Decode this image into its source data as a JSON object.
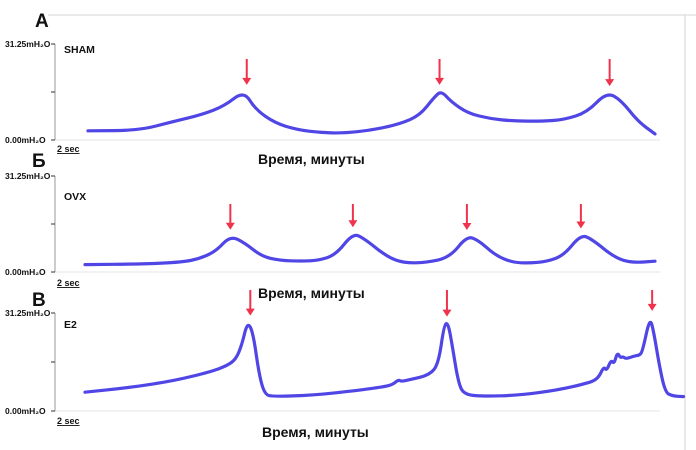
{
  "colors": {
    "trace": "#4f46e5",
    "arrow": "#f0334d"
  },
  "chart_data": [
    {
      "type": "line",
      "panel_letter": "А",
      "group_label": "SHAM",
      "ylim_labels": [
        "0.00mH₂O",
        "31.25mH₂O"
      ],
      "ylim": [
        0,
        31.25
      ],
      "xlim": [
        0,
        100
      ],
      "scale_bar": "2 sec",
      "xlabel": "Время, минуты",
      "points": [
        [
          0,
          3.0
        ],
        [
          9,
          3.1
        ],
        [
          15,
          6.0
        ],
        [
          20,
          8.2
        ],
        [
          24,
          11.0
        ],
        [
          27.5,
          16.0
        ],
        [
          29.5,
          10.0
        ],
        [
          33,
          5.5
        ],
        [
          37,
          3.3
        ],
        [
          41,
          2.4
        ],
        [
          45,
          2.2
        ],
        [
          50,
          3.2
        ],
        [
          55,
          5.2
        ],
        [
          58.5,
          8.0
        ],
        [
          61,
          13.8
        ],
        [
          62.3,
          16.0
        ],
        [
          64,
          12.5
        ],
        [
          67,
          8.7
        ],
        [
          71,
          6.9
        ],
        [
          75,
          6.2
        ],
        [
          80,
          6.1
        ],
        [
          84,
          6.6
        ],
        [
          88,
          9.0
        ],
        [
          91.5,
          15.6
        ],
        [
          94,
          13.0
        ],
        [
          97,
          6.0
        ],
        [
          100,
          2.0
        ]
      ],
      "arrows_x": [
        28,
        62,
        92
      ]
    },
    {
      "type": "line",
      "panel_letter": "Б",
      "group_label": "OVX",
      "ylim_labels": [
        "0.00mH₂O",
        "31.25mH₂O"
      ],
      "ylim": [
        0,
        31.25
      ],
      "xlim": [
        0,
        100
      ],
      "scale_bar": "2 sec",
      "xlabel": "Время, минуты",
      "points": [
        [
          0,
          2.4
        ],
        [
          10,
          2.6
        ],
        [
          17,
          3.2
        ],
        [
          20,
          4.3
        ],
        [
          23,
          6.8
        ],
        [
          25.5,
          11.8
        ],
        [
          28,
          9.5
        ],
        [
          31,
          5.1
        ],
        [
          34,
          3.8
        ],
        [
          38,
          3.5
        ],
        [
          41,
          3.8
        ],
        [
          44,
          5.6
        ],
        [
          47,
          12.6
        ],
        [
          49,
          10.9
        ],
        [
          53,
          4.9
        ],
        [
          56,
          2.9
        ],
        [
          60,
          3.1
        ],
        [
          64,
          4.8
        ],
        [
          67,
          11.7
        ],
        [
          69,
          10.4
        ],
        [
          72,
          5.4
        ],
        [
          75,
          3.1
        ],
        [
          78,
          2.9
        ],
        [
          81,
          3.4
        ],
        [
          84,
          5.4
        ],
        [
          87,
          12.2
        ],
        [
          89,
          10.6
        ],
        [
          93,
          4.6
        ],
        [
          96,
          3.0
        ],
        [
          100,
          3.5
        ]
      ],
      "arrows_x": [
        25.5,
        47,
        67,
        87
      ]
    },
    {
      "type": "line",
      "panel_letter": "В",
      "group_label": "E2",
      "ylim_labels": [
        "0.00mH₂O",
        "31.25mH₂O"
      ],
      "ylim": [
        0,
        31.25
      ],
      "xlim": [
        0,
        100
      ],
      "scale_bar": "2 sec",
      "xlabel": "Время, минуты",
      "points": [
        [
          0,
          6.0
        ],
        [
          8,
          7.5
        ],
        [
          16,
          9.8
        ],
        [
          22,
          12.5
        ],
        [
          25,
          14.5
        ],
        [
          26.5,
          16.6
        ],
        [
          27.5,
          21.0
        ],
        [
          28.5,
          28.5
        ],
        [
          29.5,
          25.0
        ],
        [
          30.5,
          12.0
        ],
        [
          31.5,
          5.3
        ],
        [
          33,
          4.6
        ],
        [
          40,
          5.0
        ],
        [
          48,
          6.6
        ],
        [
          52,
          7.6
        ],
        [
          54,
          8.4
        ],
        [
          55,
          10.0
        ],
        [
          55.5,
          9.4
        ],
        [
          57,
          10.0
        ],
        [
          60.5,
          11.5
        ],
        [
          62,
          15.0
        ],
        [
          63,
          27.5
        ],
        [
          63.7,
          28.2
        ],
        [
          64.5,
          20.0
        ],
        [
          65.5,
          9.0
        ],
        [
          66.5,
          5.2
        ],
        [
          70,
          4.7
        ],
        [
          76,
          5.0
        ],
        [
          83,
          6.7
        ],
        [
          88,
          8.8
        ],
        [
          90,
          10.2
        ],
        [
          91,
          14.2
        ],
        [
          91.5,
          12.8
        ],
        [
          92.3,
          16.3
        ],
        [
          92.8,
          15.0
        ],
        [
          93.4,
          18.7
        ],
        [
          93.9,
          17.0
        ],
        [
          94.4,
          17.3
        ],
        [
          94.9,
          16.6
        ],
        [
          96.3,
          17.5
        ],
        [
          97.3,
          17.8
        ],
        [
          97.8,
          19.0
        ],
        [
          99.1,
          30.0
        ],
        [
          99.8,
          25.0
        ],
        [
          100.8,
          14.0
        ],
        [
          101.8,
          6.0
        ],
        [
          103,
          4.8
        ],
        [
          105,
          4.6
        ]
      ],
      "arrows_x": [
        29,
        63.5,
        99.5
      ]
    }
  ]
}
